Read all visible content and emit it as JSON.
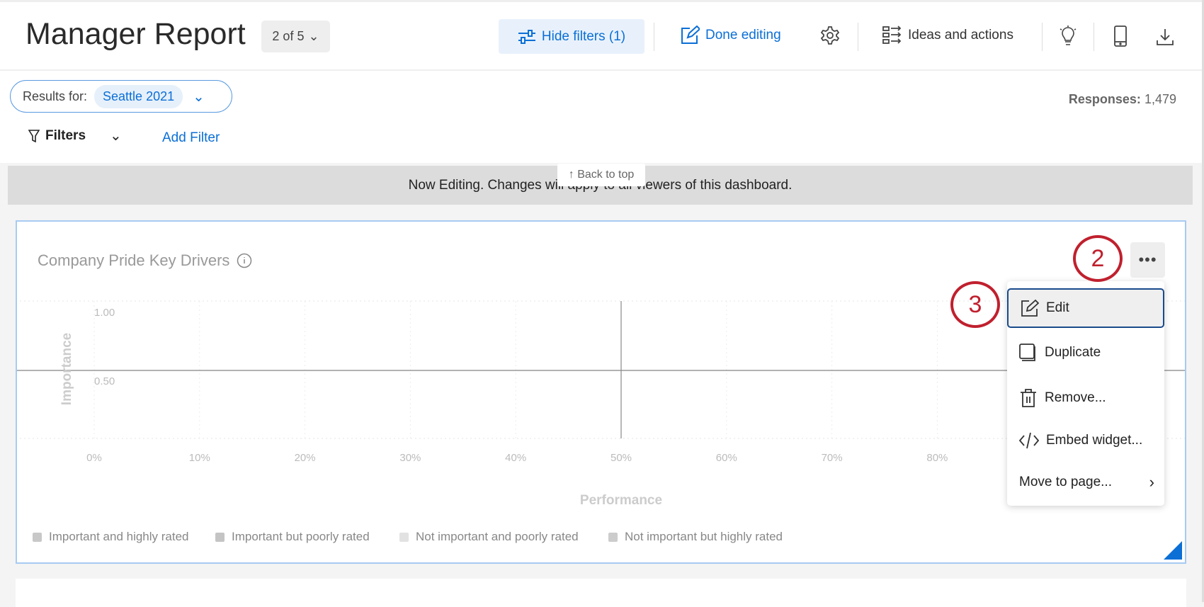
{
  "header": {
    "title": "Manager Report",
    "pager": "2 of 5",
    "hide_filters": "Hide filters (1)",
    "done_editing": "Done editing",
    "ideas": "Ideas and actions"
  },
  "filters": {
    "results_label": "Results for:",
    "results_value": "Seattle 2021",
    "filters_label": "Filters",
    "add_filter": "Add Filter",
    "responses_label": "Responses:",
    "responses_value": "1,479"
  },
  "banner": {
    "text": "Now Editing. Changes will apply to all viewers of this dashboard.",
    "back_to_top": "↑ Back to top"
  },
  "menu": {
    "items": [
      "Edit",
      "Duplicate",
      "Remove...",
      "Embed widget...",
      "Move to page..."
    ]
  },
  "annotations": [
    "2",
    "3"
  ],
  "accent": "#0b6fd6",
  "chart_data": {
    "type": "scatter",
    "title": "Company Pride Key Drivers",
    "xlabel": "Performance",
    "ylabel": "Importance",
    "xticks": [
      "0%",
      "10%",
      "20%",
      "30%",
      "40%",
      "50%",
      "60%",
      "70%",
      "80%"
    ],
    "yticks": [
      "1.00",
      "0.50"
    ],
    "points": [],
    "legend": [
      {
        "name": "Important and highly rated",
        "color": "#c8c8c8"
      },
      {
        "name": "Important but poorly rated",
        "color": "#c4c4c4"
      },
      {
        "name": "Not important and poorly rated",
        "color": "#e2e2e2"
      },
      {
        "name": "Not important but highly rated",
        "color": "#cccccc"
      }
    ],
    "legend_position": "bottom",
    "grid": true
  }
}
